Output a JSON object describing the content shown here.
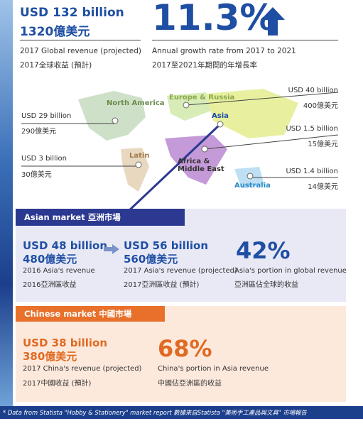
{
  "global": {
    "revenue_en": "USD 132 billion",
    "revenue_zh": "1320億美元",
    "label_en": "2017 Global revenue (projected)",
    "label_zh": "2017全球收益 (預計)"
  },
  "growth": {
    "value": "11.3%",
    "label_en": "Annual growth rate from 2017 to 2021",
    "label_zh": "2017至2021年期間的年增長率"
  },
  "map": {
    "regions": [
      "North America",
      "Europe & Russia",
      "Asia",
      "Latin",
      "Africa & Middle East",
      "Australia"
    ],
    "callouts": [
      {
        "en": "USD 29 billion",
        "zh": "290億美元"
      },
      {
        "en": "USD 3 billion",
        "zh": "30億美元"
      },
      {
        "en": "USD 40 billion",
        "zh": "400億美元"
      },
      {
        "en": "USD 1.5 billion",
        "zh": "15億美元"
      },
      {
        "en": "USD 1.4 billion",
        "zh": "14億美元"
      }
    ]
  },
  "asian_market": {
    "title": "Asian market 亞洲市場",
    "items": [
      {
        "value_en": "USD 48 billion",
        "value_zh": "480億美元",
        "label_en": "2016 Asia's revenue",
        "label_zh": "2016亞洲區收益"
      },
      {
        "value_en": "USD 56 billion",
        "value_zh": "560億美元",
        "label_en": "2017 Asia's revenue (projected)",
        "label_zh": "2017亞洲區收益 (預計)"
      },
      {
        "value_en": "42%",
        "label_en": "Asia's portion in global revenue",
        "label_zh": "亞洲區佔全球的收益"
      }
    ]
  },
  "chinese_market": {
    "title": "Chinese market 中國市場",
    "items": [
      {
        "value_en": "USD 38 billion",
        "value_zh": "380億美元",
        "label_en": "2017 China's revenue (projected)",
        "label_zh": "2017中國收益 (預計)"
      },
      {
        "value_en": "68%",
        "label_en": "China's portion in Asia revenue",
        "label_zh": "中國佔亞洲區的收益"
      }
    ]
  },
  "footer": {
    "text": "* Data from Statista \"Hobby & Stationery\" market report 數據來自Statista \"美術手工產品與文具\" 市場報告"
  }
}
